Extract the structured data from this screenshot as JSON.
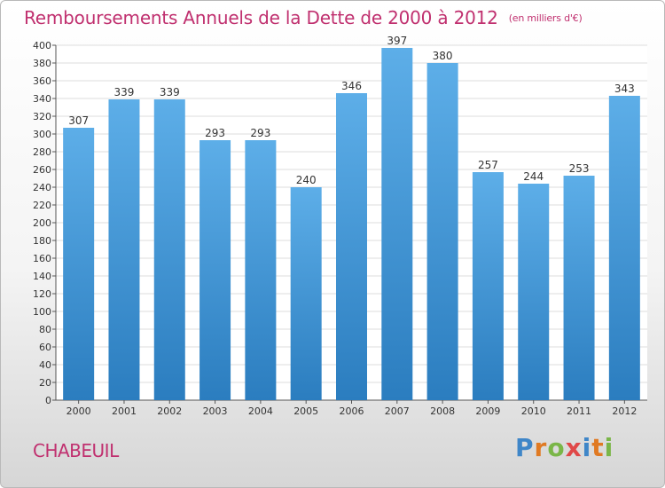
{
  "header": {
    "title": "Remboursements Annuels de la Dette de 2000 à 2012",
    "unit": "(en milliers d'€)"
  },
  "commune": "CHABEUIL",
  "brand": {
    "letters": [
      "P",
      "r",
      "o",
      "x",
      "i",
      "t",
      "i"
    ],
    "colors": [
      "#3f86c8",
      "#e07a23",
      "#7ab648",
      "#e04848",
      "#3f86c8",
      "#e07a23",
      "#7ab648"
    ]
  },
  "colors": {
    "accent": "#c0306f",
    "bar_light": "#5daee8",
    "bar_dark": "#2b7dbf"
  },
  "chart_data": {
    "type": "bar",
    "title": "Remboursements Annuels de la Dette de 2000 à 2012",
    "ylabel": "en milliers d'€",
    "xlabel": "",
    "categories": [
      "2000",
      "2001",
      "2002",
      "2003",
      "2004",
      "2005",
      "2006",
      "2007",
      "2008",
      "2009",
      "2010",
      "2011",
      "2012"
    ],
    "values": [
      307,
      339,
      339,
      293,
      293,
      240,
      346,
      397,
      380,
      257,
      244,
      253,
      343
    ],
    "ylim": [
      0,
      400
    ],
    "ytick_step": 20,
    "grid": true
  }
}
